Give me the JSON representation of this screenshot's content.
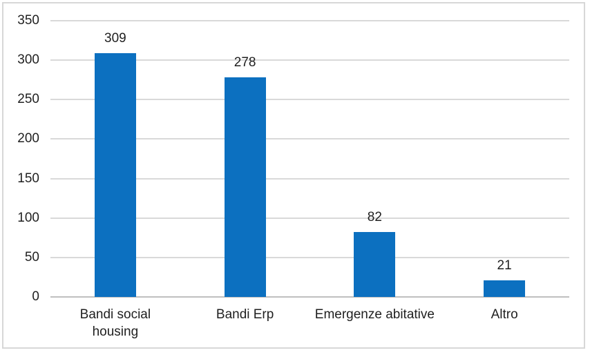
{
  "chart_data": {
    "type": "bar",
    "title": "",
    "xlabel": "",
    "ylabel": "",
    "categories": [
      "Bandi social housing",
      "Bandi Erp",
      "Emergenze abitative",
      "Altro"
    ],
    "category_tick_labels": [
      "Bandi social\nhousing",
      "Bandi Erp",
      "Emergenze abitative",
      "Altro"
    ],
    "values": [
      309,
      278,
      82,
      21
    ],
    "data_labels": [
      "309",
      "278",
      "82",
      "21"
    ],
    "ylim": [
      0,
      350
    ],
    "ytick_interval": 50,
    "yticks": [
      350,
      300,
      250,
      200,
      150,
      100,
      50,
      0
    ],
    "grid": true,
    "legend": "none",
    "colors": {
      "bar": "#0c70c0",
      "gridline": "#d9d9d9",
      "axis_line": "#bfbfbf",
      "text": "#1f1f1f",
      "frame_border": "#d7d7d7",
      "background": "#ffffff"
    }
  }
}
